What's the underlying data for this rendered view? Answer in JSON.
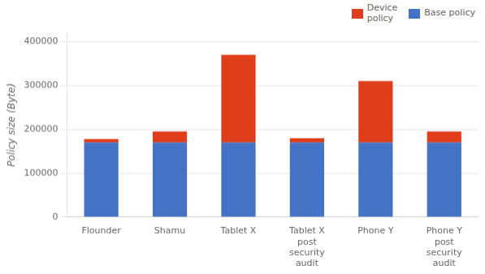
{
  "chart_data": {
    "type": "bar",
    "stacked": true,
    "ylabel": "Policy size (Byte)",
    "categories": [
      "Flounder",
      "Shamu",
      "Tablet X",
      "Tablet X\npost\nsecurity\naudit",
      "Phone Y",
      "Phone Y\npost\nsecurity\naudit"
    ],
    "series": [
      {
        "name": "Base policy",
        "color": "#4472c4",
        "values": [
          170000,
          170000,
          170000,
          170000,
          170000,
          170000
        ]
      },
      {
        "name": "Device\npolicy",
        "color": "#e03e1a",
        "values": [
          8000,
          25000,
          200000,
          10000,
          140000,
          25000
        ]
      }
    ],
    "ylim": [
      0,
      420000
    ],
    "yticks": [
      0,
      100000,
      200000,
      300000,
      400000
    ],
    "grid": true,
    "legend": "upper right"
  }
}
